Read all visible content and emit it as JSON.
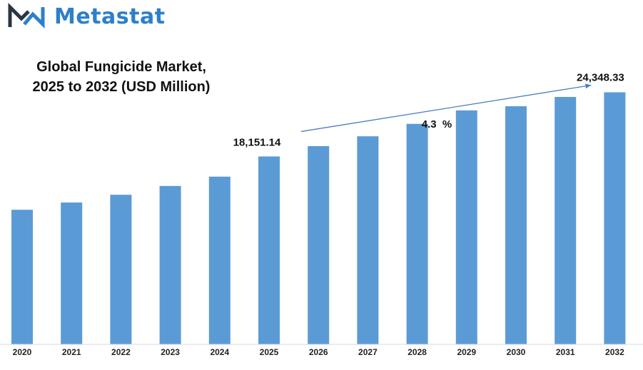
{
  "brand": {
    "name": "Metastat",
    "color": "#2e7fcb",
    "icon": "metastat-m-logo-icon"
  },
  "chart_data": {
    "type": "bar",
    "title_line1": "Global Fungicide Market,",
    "title_line2": "2025 to 2032 (USD Million)",
    "categories": [
      "2020",
      "2021",
      "2022",
      "2023",
      "2024",
      "2025",
      "2026",
      "2027",
      "2028",
      "2029",
      "2030",
      "2031",
      "2032"
    ],
    "values": [
      13000,
      13700,
      14450,
      15300,
      16200,
      18151.14,
      19150,
      20100,
      21300,
      22600,
      23000,
      23900,
      24348.33
    ],
    "ylim": [
      0,
      25000
    ],
    "grid": false,
    "bar_color": "#5b9bd5",
    "annotations": {
      "start_label": "18,151.14",
      "end_label": "24,348.33",
      "cagr_label": "4.3  %"
    }
  }
}
